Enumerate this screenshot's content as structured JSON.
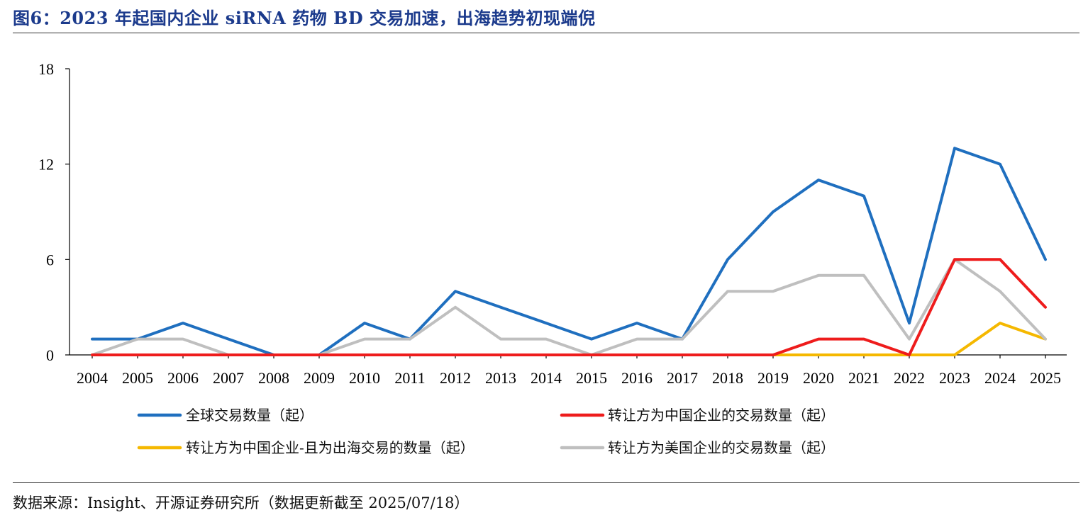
{
  "figure": {
    "title": "图6：2023 年起国内企业 siRNA 药物 BD 交易加速，出海趋势初现端倪",
    "source": "数据来源：Insight、开源证券研究所（数据更新截至 2025/07/18）"
  },
  "chart_data": {
    "type": "line",
    "categories": [
      "2004",
      "2005",
      "2006",
      "2007",
      "2008",
      "2009",
      "2010",
      "2011",
      "2012",
      "2013",
      "2014",
      "2015",
      "2016",
      "2017",
      "2018",
      "2019",
      "2020",
      "2021",
      "2022",
      "2023",
      "2024",
      "2025"
    ],
    "ylim": [
      0,
      18
    ],
    "yticks": [
      0,
      6,
      12,
      18
    ],
    "grid": false,
    "legend_position": "bottom",
    "series": [
      {
        "name": "全球交易数量（起）",
        "color": "#1f6fbf",
        "values": [
          1,
          1,
          2,
          1,
          0,
          0,
          2,
          1,
          4,
          3,
          2,
          1,
          2,
          1,
          6,
          9,
          11,
          10,
          2,
          13,
          12,
          6
        ]
      },
      {
        "name": "转让方为中国企业的交易数量（起）",
        "color": "#ee1c1c",
        "values": [
          0,
          0,
          0,
          0,
          0,
          0,
          0,
          0,
          0,
          0,
          0,
          0,
          0,
          0,
          0,
          0,
          1,
          1,
          0,
          6,
          6,
          3
        ]
      },
      {
        "name": "转让方为中国企业-且为出海交易的数量（起）",
        "color": "#f5b800",
        "values": [
          0,
          0,
          0,
          0,
          0,
          0,
          0,
          0,
          0,
          0,
          0,
          0,
          0,
          0,
          0,
          0,
          0,
          0,
          0,
          0,
          2,
          1
        ]
      },
      {
        "name": "转让方为美国企业的交易数量（起）",
        "color": "#bfbfbf",
        "values": [
          0,
          1,
          1,
          0,
          0,
          0,
          1,
          1,
          3,
          1,
          1,
          0,
          1,
          1,
          4,
          4,
          5,
          5,
          1,
          6,
          4,
          1
        ]
      }
    ]
  }
}
